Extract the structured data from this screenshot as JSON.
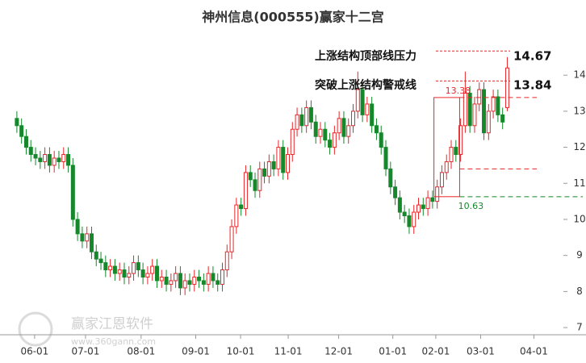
{
  "chart_data": {
    "type": "candlestick",
    "title": "神州信息(000555)赢家十二宫",
    "up_color": "#e8262a",
    "down_color": "#14882a",
    "xlim": [
      -0.5,
      116.5
    ],
    "xticks": [
      {
        "value": 3.8,
        "label": "06-01"
      },
      {
        "value": 14.7,
        "label": "07-01"
      },
      {
        "value": 26.6,
        "label": "08-01"
      },
      {
        "value": 38.3,
        "label": "09-01"
      },
      {
        "value": 47.9,
        "label": "10-01"
      },
      {
        "value": 58.1,
        "label": "11-01"
      },
      {
        "value": 68.9,
        "label": "12-01"
      },
      {
        "value": 80.5,
        "label": "01-01"
      },
      {
        "value": 89.7,
        "label": "02-01"
      },
      {
        "value": 99.3,
        "label": "03-01"
      },
      {
        "value": 110.7,
        "label": "04-01"
      }
    ],
    "ylim": [
      6.8,
      15.19
    ],
    "yticks": [
      7,
      8,
      9,
      10,
      11,
      12,
      13,
      14
    ],
    "candles": [
      [
        12.8,
        13.0,
        12.4,
        12.6
      ],
      [
        12.6,
        12.8,
        12.1,
        12.3
      ],
      [
        12.3,
        12.5,
        11.8,
        12.0
      ],
      [
        12.0,
        12.2,
        11.6,
        11.8
      ],
      [
        11.8,
        12.0,
        11.5,
        11.7
      ],
      [
        11.7,
        11.9,
        11.4,
        11.6
      ],
      [
        11.6,
        12.0,
        11.4,
        11.8
      ],
      [
        11.8,
        12.0,
        11.3,
        11.5
      ],
      [
        11.5,
        11.9,
        11.3,
        11.7
      ],
      [
        11.7,
        11.9,
        11.4,
        11.6
      ],
      [
        11.6,
        12.0,
        11.4,
        11.8
      ],
      [
        11.8,
        12.0,
        11.3,
        11.5
      ],
      [
        11.5,
        11.7,
        9.8,
        10.0
      ],
      [
        10.0,
        10.2,
        9.4,
        9.6
      ],
      [
        9.6,
        9.8,
        9.2,
        9.4
      ],
      [
        9.4,
        9.8,
        9.2,
        9.6
      ],
      [
        9.6,
        9.8,
        8.9,
        9.1
      ],
      [
        9.1,
        9.3,
        8.7,
        8.9
      ],
      [
        8.9,
        9.1,
        8.6,
        8.8
      ],
      [
        8.8,
        9.0,
        8.4,
        8.6
      ],
      [
        8.6,
        8.9,
        8.4,
        8.7
      ],
      [
        8.7,
        8.9,
        8.3,
        8.5
      ],
      [
        8.5,
        8.8,
        8.3,
        8.6
      ],
      [
        8.6,
        8.8,
        8.2,
        8.4
      ],
      [
        8.4,
        8.7,
        8.2,
        8.5
      ],
      [
        8.5,
        9.0,
        8.3,
        8.8
      ],
      [
        8.8,
        9.0,
        8.4,
        8.6
      ],
      [
        8.6,
        8.8,
        8.2,
        8.4
      ],
      [
        8.4,
        8.7,
        8.2,
        8.5
      ],
      [
        8.5,
        8.9,
        8.3,
        8.7
      ],
      [
        8.7,
        8.9,
        8.1,
        8.3
      ],
      [
        8.3,
        8.6,
        8.1,
        8.4
      ],
      [
        8.4,
        8.6,
        8.0,
        8.2
      ],
      [
        8.2,
        8.5,
        8.0,
        8.3
      ],
      [
        8.3,
        8.7,
        8.1,
        8.5
      ],
      [
        8.5,
        8.7,
        7.9,
        8.1
      ],
      [
        8.1,
        8.5,
        7.9,
        8.3
      ],
      [
        8.3,
        8.5,
        8.0,
        8.2
      ],
      [
        8.2,
        8.6,
        8.0,
        8.4
      ],
      [
        8.4,
        8.6,
        8.1,
        8.3
      ],
      [
        8.3,
        8.5,
        8.0,
        8.2
      ],
      [
        8.2,
        8.7,
        8.0,
        8.5
      ],
      [
        8.5,
        8.7,
        8.1,
        8.3
      ],
      [
        8.3,
        8.5,
        8.0,
        8.2
      ],
      [
        8.2,
        8.8,
        8.0,
        8.6
      ],
      [
        8.6,
        9.3,
        8.4,
        9.1
      ],
      [
        9.1,
        10.0,
        8.9,
        9.8
      ],
      [
        9.8,
        10.6,
        9.6,
        10.4
      ],
      [
        10.4,
        10.6,
        10.1,
        10.3
      ],
      [
        10.3,
        11.5,
        10.1,
        11.3
      ],
      [
        11.3,
        11.5,
        10.9,
        11.1
      ],
      [
        11.1,
        11.3,
        10.6,
        10.8
      ],
      [
        10.8,
        11.6,
        10.6,
        11.4
      ],
      [
        11.4,
        11.6,
        11.0,
        11.2
      ],
      [
        11.2,
        11.8,
        11.0,
        11.6
      ],
      [
        11.6,
        11.8,
        11.2,
        11.4
      ],
      [
        11.4,
        12.2,
        11.2,
        12.0
      ],
      [
        12.0,
        12.2,
        11.1,
        11.3
      ],
      [
        11.3,
        12.0,
        11.1,
        11.8
      ],
      [
        11.8,
        12.7,
        11.6,
        12.5
      ],
      [
        12.5,
        13.1,
        12.3,
        12.9
      ],
      [
        12.9,
        13.1,
        12.4,
        12.6
      ],
      [
        12.6,
        13.3,
        12.4,
        13.1
      ],
      [
        13.1,
        13.3,
        12.5,
        12.7
      ],
      [
        12.7,
        12.9,
        12.1,
        12.3
      ],
      [
        12.3,
        12.7,
        12.1,
        12.5
      ],
      [
        12.5,
        12.7,
        12.0,
        12.2
      ],
      [
        12.2,
        12.4,
        11.8,
        12.0
      ],
      [
        12.0,
        12.6,
        11.8,
        12.4
      ],
      [
        12.4,
        13.0,
        12.2,
        12.8
      ],
      [
        12.8,
        13.0,
        12.1,
        12.3
      ],
      [
        12.3,
        12.8,
        12.1,
        12.6
      ],
      [
        12.6,
        13.2,
        12.4,
        13.0
      ],
      [
        13.0,
        14.1,
        12.8,
        13.6
      ],
      [
        13.6,
        13.8,
        12.7,
        12.9
      ],
      [
        12.9,
        13.4,
        12.7,
        13.2
      ],
      [
        13.2,
        13.4,
        12.4,
        12.6
      ],
      [
        12.6,
        12.8,
        12.2,
        12.4
      ],
      [
        12.4,
        12.6,
        11.8,
        12.0
      ],
      [
        12.0,
        12.2,
        11.2,
        11.4
      ],
      [
        11.4,
        11.6,
        10.7,
        10.9
      ],
      [
        10.9,
        11.1,
        10.4,
        10.6
      ],
      [
        10.6,
        10.8,
        10.0,
        10.2
      ],
      [
        10.2,
        10.4,
        9.9,
        10.1
      ],
      [
        10.1,
        10.3,
        9.6,
        9.8
      ],
      [
        9.8,
        10.4,
        9.6,
        10.2
      ],
      [
        10.2,
        10.6,
        10.0,
        10.4
      ],
      [
        10.4,
        10.6,
        10.1,
        10.3
      ],
      [
        10.3,
        10.8,
        10.1,
        10.6
      ],
      [
        10.6,
        10.8,
        10.3,
        10.5
      ],
      [
        10.5,
        11.1,
        10.3,
        10.9
      ],
      [
        10.9,
        11.5,
        10.7,
        11.3
      ],
      [
        11.3,
        11.8,
        11.1,
        11.6
      ],
      [
        11.6,
        12.2,
        11.4,
        12.0
      ],
      [
        12.0,
        12.2,
        11.6,
        11.8
      ],
      [
        11.8,
        12.8,
        11.6,
        12.6
      ],
      [
        12.6,
        14.1,
        12.4,
        13.5
      ],
      [
        13.5,
        13.7,
        12.4,
        12.6
      ],
      [
        12.6,
        13.4,
        12.4,
        13.2
      ],
      [
        13.2,
        13.8,
        13.0,
        13.6
      ],
      [
        13.6,
        13.8,
        12.2,
        12.4
      ],
      [
        12.4,
        13.2,
        12.2,
        13.0
      ],
      [
        13.0,
        13.6,
        12.8,
        13.4
      ],
      [
        13.4,
        13.6,
        12.7,
        12.9
      ],
      [
        12.9,
        13.1,
        12.5,
        12.7
      ],
      [
        13.1,
        14.5,
        13.0,
        14.2
      ]
    ],
    "levels": [
      {
        "label": "上涨结构顶部线压力",
        "value": 14.67
      },
      {
        "label": "突破上涨结构警戒线",
        "value": 13.84
      }
    ],
    "box": {
      "x": [
        89.3,
        94.8
      ],
      "top": 13.38,
      "bottom": 10.63
    },
    "mid_level": 11.4,
    "watermark": {
      "name": "赢家江恩软件",
      "url": "www.360gann.com"
    }
  }
}
